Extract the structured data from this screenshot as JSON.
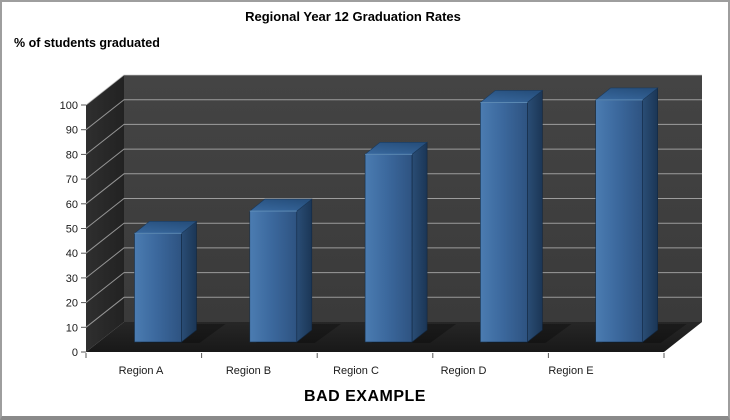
{
  "chart_data": {
    "type": "bar",
    "variant": "3d-column",
    "title": "Regional Year 12 Graduation Rates",
    "ylabel": "% of students graduated",
    "xlabel": "",
    "categories": [
      "Region A",
      "Region B",
      "Region C",
      "Region D",
      "Region E"
    ],
    "values": [
      44,
      53,
      76,
      97,
      98
    ],
    "ylim": [
      0,
      100
    ],
    "ytick_step": 10,
    "yticks": [
      0,
      10,
      20,
      30,
      40,
      50,
      60,
      70,
      80,
      90,
      100
    ],
    "grid": true,
    "legend": false,
    "annotation": "BAD EXAMPLE",
    "colors": {
      "bar_front": "#3C699E",
      "bar_front_light": "#4B7CB1",
      "bar_front_dark": "#2E5381",
      "bar_side": "#1F3C5F",
      "bar_top": "#2E5A8E",
      "wall_back": "#3E3E3E",
      "wall_left": "#282828",
      "floor": "#1D1D1D",
      "gridline": "#C9C9C9",
      "tick_text": "#1A1A1A",
      "frame_border": "#9E9E9E"
    }
  }
}
